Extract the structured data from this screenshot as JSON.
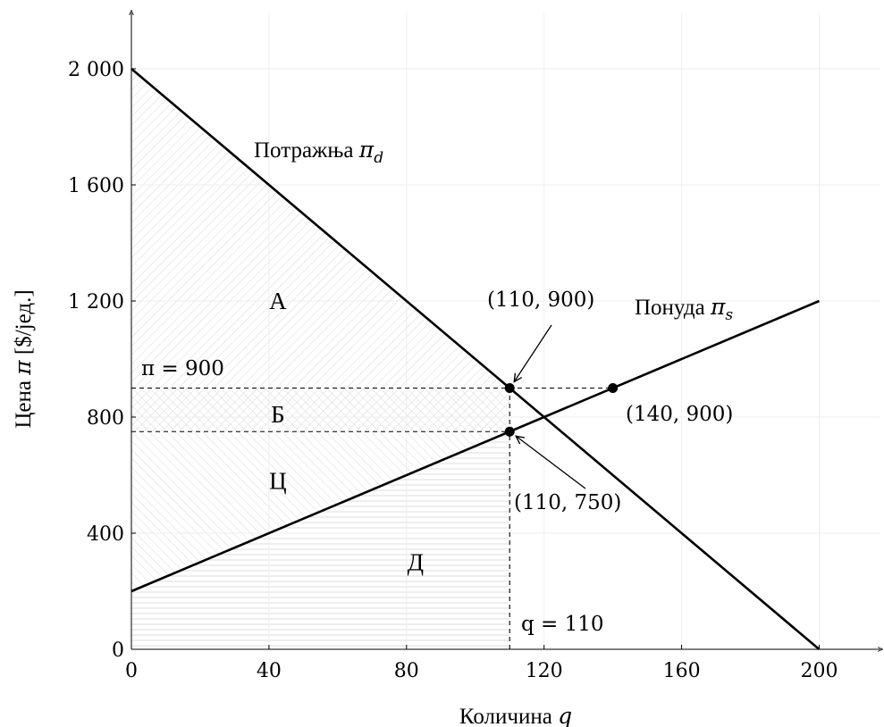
{
  "chart_data": {
    "type": "line",
    "xlabel": "Количина",
    "xlabel_symbol": "q",
    "ylabel": "Цена",
    "ylabel_symbol": "π",
    "ylabel_unit": "[$/јед.]",
    "xlim": [
      0,
      220
    ],
    "ylim": [
      0,
      2200
    ],
    "x_ticks": [
      0,
      40,
      80,
      120,
      160,
      200
    ],
    "x_tick_labels": [
      "0",
      "40",
      "80",
      "120",
      "160",
      "200"
    ],
    "y_ticks": [
      0,
      400,
      800,
      1200,
      1600,
      2000
    ],
    "y_tick_labels": [
      "0",
      "400",
      "800",
      "1 200",
      "1 600",
      "2 000"
    ],
    "grid": true,
    "series": [
      {
        "name": "Потражња",
        "symbol": "π",
        "subscript": "d",
        "x": [
          0,
          200
        ],
        "y": [
          2000,
          0
        ]
      },
      {
        "name": "Понуда",
        "symbol": "π",
        "subscript": "s",
        "x": [
          0,
          200
        ],
        "y": [
          200,
          1200
        ]
      }
    ],
    "reference_lines": [
      {
        "axis": "y",
        "value": 900,
        "x_to": 140,
        "label": "π = 900"
      },
      {
        "axis": "y",
        "value": 750,
        "x_to": 110
      },
      {
        "axis": "x",
        "value": 110,
        "y_to": 900,
        "label": "q = 110"
      }
    ],
    "points": [
      {
        "x": 110,
        "y": 900,
        "label": "(110, 900)"
      },
      {
        "x": 140,
        "y": 900,
        "label": "(140, 900)"
      },
      {
        "x": 110,
        "y": 750,
        "label": "(110, 750)"
      }
    ],
    "regions": [
      {
        "label": "А",
        "x": 40,
        "y": 1200
      },
      {
        "label": "Б",
        "x": 40,
        "y": 810
      },
      {
        "label": "Ц",
        "x": 40,
        "y": 580
      },
      {
        "label": "Д",
        "x": 80,
        "y": 300
      }
    ]
  }
}
